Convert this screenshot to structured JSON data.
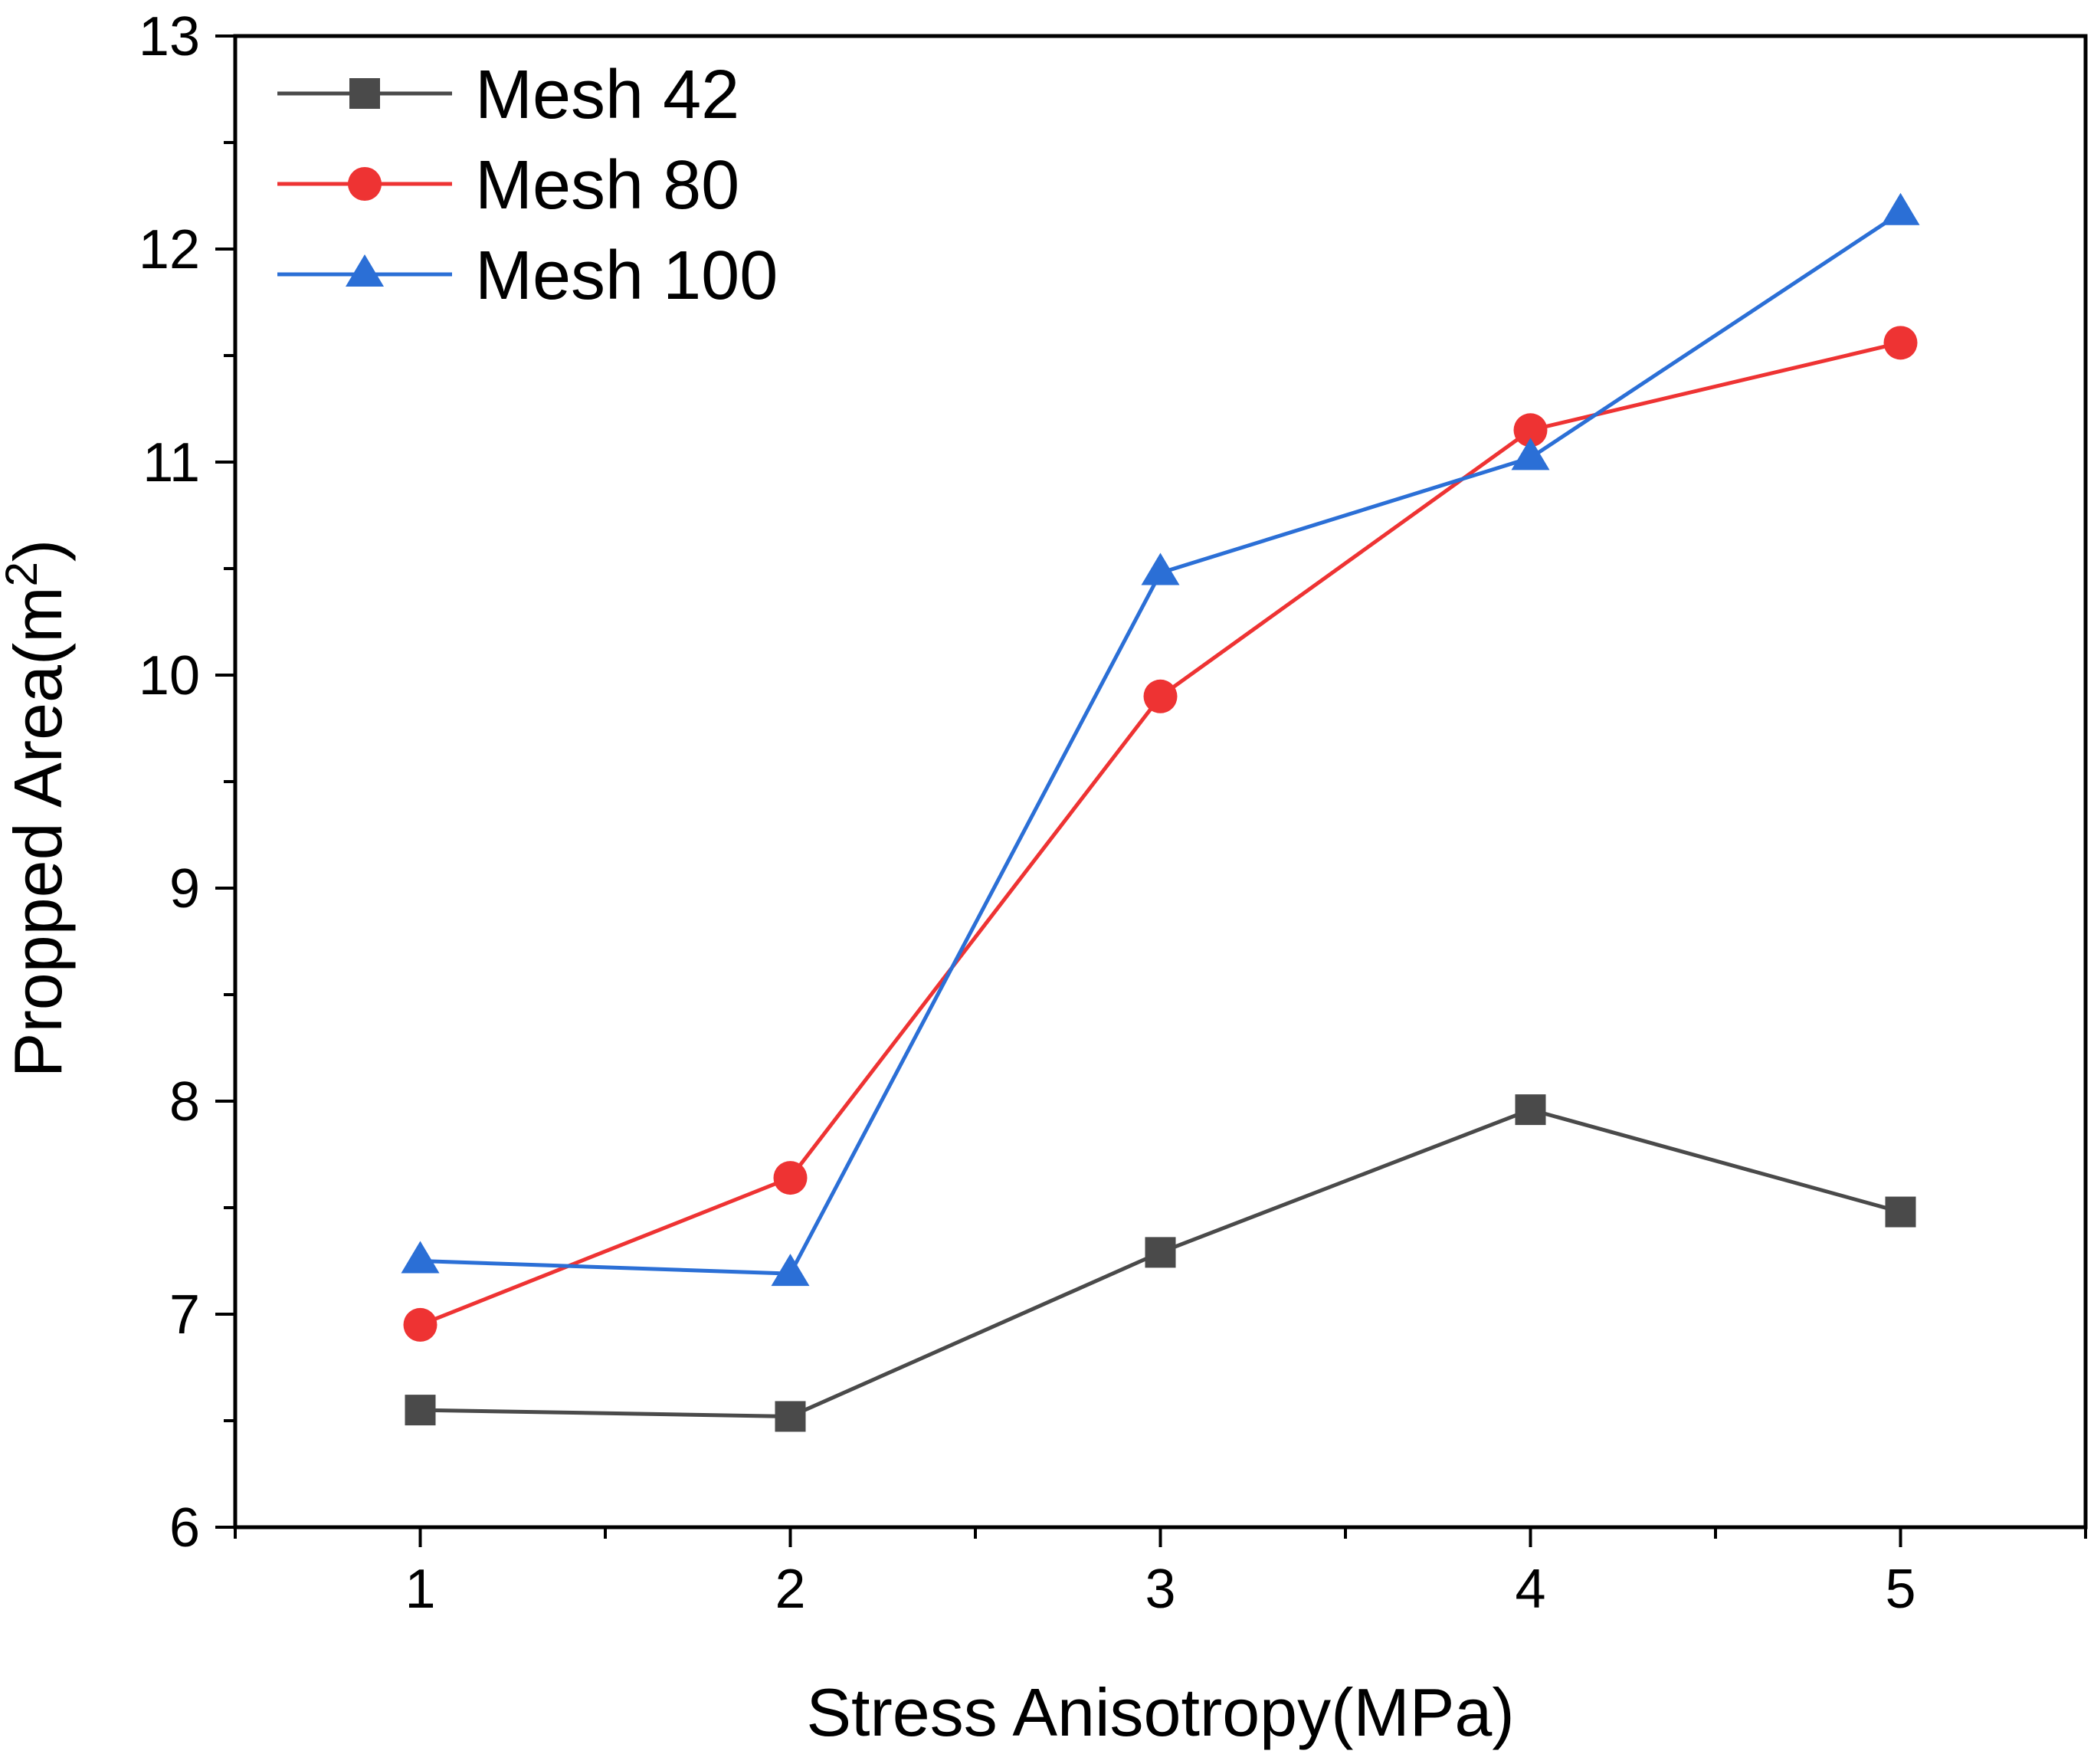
{
  "chart_data": {
    "type": "line",
    "title": "",
    "xlabel": "Stress Anisotropy(MPa)",
    "ylabel_main": "Propped Area(m",
    "ylabel_sup": "2",
    "ylabel_close": ")",
    "x": [
      1,
      2,
      3,
      4,
      5
    ],
    "xticks": [
      "1",
      "2",
      "3",
      "4",
      "5"
    ],
    "xlim": [
      0.5,
      5.5
    ],
    "yticks": [
      "6",
      "7",
      "8",
      "9",
      "10",
      "11",
      "12",
      "13"
    ],
    "ylim": [
      6,
      13
    ],
    "grid": false,
    "legend_position": "top-left",
    "series": [
      {
        "name": "Mesh 42",
        "color": "#4a4a4a",
        "marker": "square",
        "values": [
          6.55,
          6.52,
          7.29,
          7.96,
          7.48
        ]
      },
      {
        "name": "Mesh 80",
        "color": "#ee3333",
        "marker": "circle",
        "values": [
          6.95,
          7.64,
          9.9,
          11.15,
          11.56
        ]
      },
      {
        "name": "Mesh 100",
        "color": "#2b6fd6",
        "marker": "triangle",
        "values": [
          7.25,
          7.19,
          10.48,
          11.02,
          12.17
        ]
      }
    ]
  }
}
